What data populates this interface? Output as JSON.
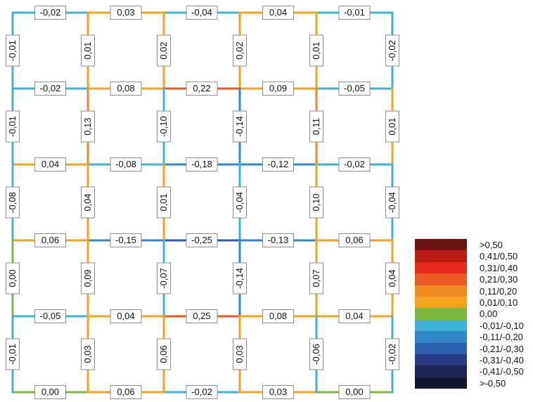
{
  "grid": {
    "horizontal_rows": [
      [
        "-0,02",
        "0,03",
        "-0,04",
        "0,04",
        "-0,01"
      ],
      [
        "-0,02",
        "0,08",
        "0,22",
        "0,09",
        "-0,05"
      ],
      [
        "0,04",
        "-0,08",
        "-0,18",
        "-0,12",
        "-0,02"
      ],
      [
        "0,06",
        "-0,15",
        "-0,25",
        "-0,13",
        "0,06"
      ],
      [
        "-0,05",
        "0,04",
        "0,25",
        "0,08",
        "0,04"
      ],
      [
        "0,00",
        "0,06",
        "-0,02",
        "0,03",
        "0,00"
      ]
    ],
    "vertical_rows": [
      [
        "-0,01",
        "0,01",
        "0,02",
        "0,02",
        "0,01",
        "-0,02"
      ],
      [
        "-0,01",
        "0,13",
        "-0,10",
        "-0,14",
        "0,11",
        "0,01"
      ],
      [
        "-0,08",
        "0,04",
        "0,01",
        "-0,04",
        "0,10",
        "-0,04"
      ],
      [
        "0,00",
        "0,09",
        "-0,07",
        "-0,14",
        "0,07",
        "0,04"
      ],
      [
        "-0,01",
        "0,03",
        "0,06",
        "0,03",
        "-0,06",
        "-0,02"
      ]
    ]
  },
  "legend": {
    "items": [
      {
        "label": ">0,50",
        "color": "#6b1410"
      },
      {
        "label": "0,41/0,50",
        "color": "#b81c17"
      },
      {
        "label": "0,31/0,40",
        "color": "#e8281e"
      },
      {
        "label": "0,21/0,30",
        "color": "#ec5a24"
      },
      {
        "label": "0,11/0,20",
        "color": "#f08a22"
      },
      {
        "label": "0,01/0,10",
        "color": "#f4a21f"
      },
      {
        "label": "0,00",
        "color": "#7cb542"
      },
      {
        "label": "-0,01/-0,10",
        "color": "#3fb3d6"
      },
      {
        "label": "-0,11/-0,20",
        "color": "#3088cc"
      },
      {
        "label": "-0,21/-0,30",
        "color": "#2e5fae"
      },
      {
        "label": "-0,31/-0,40",
        "color": "#253c85"
      },
      {
        "label": "-0,41/-0,50",
        "color": "#1c2657"
      },
      {
        "label": ">-0,50",
        "color": "#131630"
      }
    ]
  }
}
